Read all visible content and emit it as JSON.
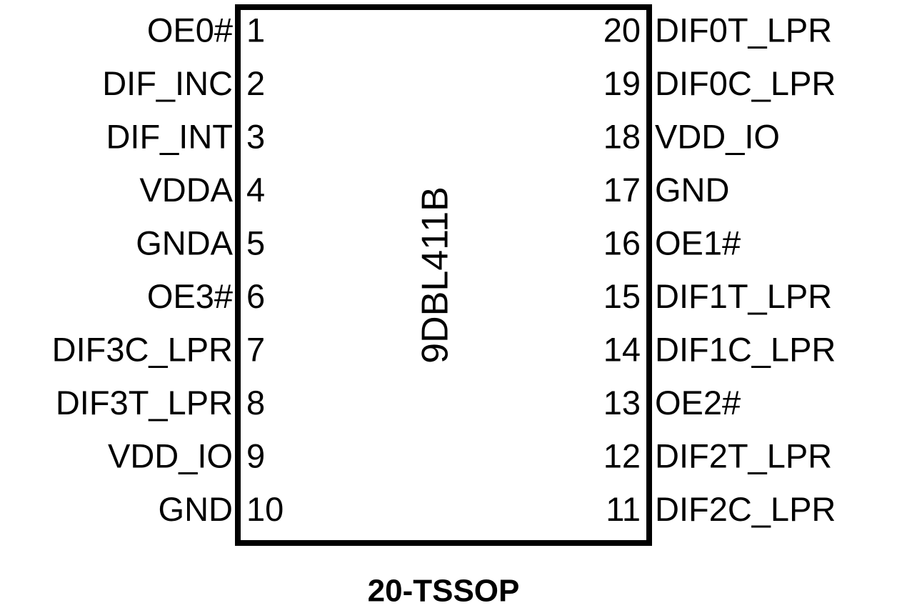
{
  "chip": {
    "name": "9DBL411B",
    "package": "20-TSSOP"
  },
  "left_pins": [
    {
      "number": 1,
      "name": "OE0#"
    },
    {
      "number": 2,
      "name": "DIF_INC"
    },
    {
      "number": 3,
      "name": "DIF_INT"
    },
    {
      "number": 4,
      "name": "VDDA"
    },
    {
      "number": 5,
      "name": "GNDA"
    },
    {
      "number": 6,
      "name": "OE3#"
    },
    {
      "number": 7,
      "name": "DIF3C_LPR"
    },
    {
      "number": 8,
      "name": "DIF3T_LPR"
    },
    {
      "number": 9,
      "name": "VDD_IO"
    },
    {
      "number": 10,
      "name": "GND"
    }
  ],
  "right_pins": [
    {
      "number": 20,
      "name": "DIF0T_LPR"
    },
    {
      "number": 19,
      "name": "DIF0C_LPR"
    },
    {
      "number": 18,
      "name": "VDD_IO"
    },
    {
      "number": 17,
      "name": "GND"
    },
    {
      "number": 16,
      "name": "OE1#"
    },
    {
      "number": 15,
      "name": "DIF1T_LPR"
    },
    {
      "number": 14,
      "name": "DIF1C_LPR"
    },
    {
      "number": 13,
      "name": "OE2#"
    },
    {
      "number": 12,
      "name": "DIF2T_LPR"
    },
    {
      "number": 11,
      "name": "DIF2C_LPR"
    }
  ]
}
